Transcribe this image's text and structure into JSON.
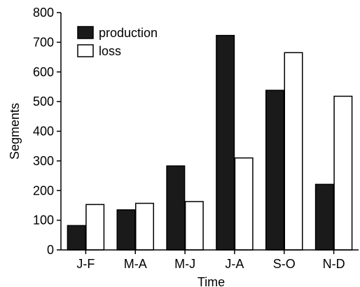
{
  "chart_data": {
    "type": "bar",
    "categories": [
      "J-F",
      "M-A",
      "M-J",
      "J-A",
      "S-O",
      "N-D"
    ],
    "series": [
      {
        "name": "production",
        "values": [
          82,
          135,
          283,
          723,
          538,
          221
        ],
        "color": "#1a1a1a"
      },
      {
        "name": "loss",
        "values": [
          153,
          157,
          163,
          310,
          665,
          518
        ],
        "color": "#ffffff"
      }
    ],
    "xlabel": "Time",
    "ylabel": "Segments",
    "ylim": [
      0,
      800
    ],
    "yticks": [
      "0",
      "100",
      "200",
      "300",
      "400",
      "500",
      "600",
      "700",
      "800"
    ],
    "grid": false,
    "legend_position": "top-left"
  }
}
